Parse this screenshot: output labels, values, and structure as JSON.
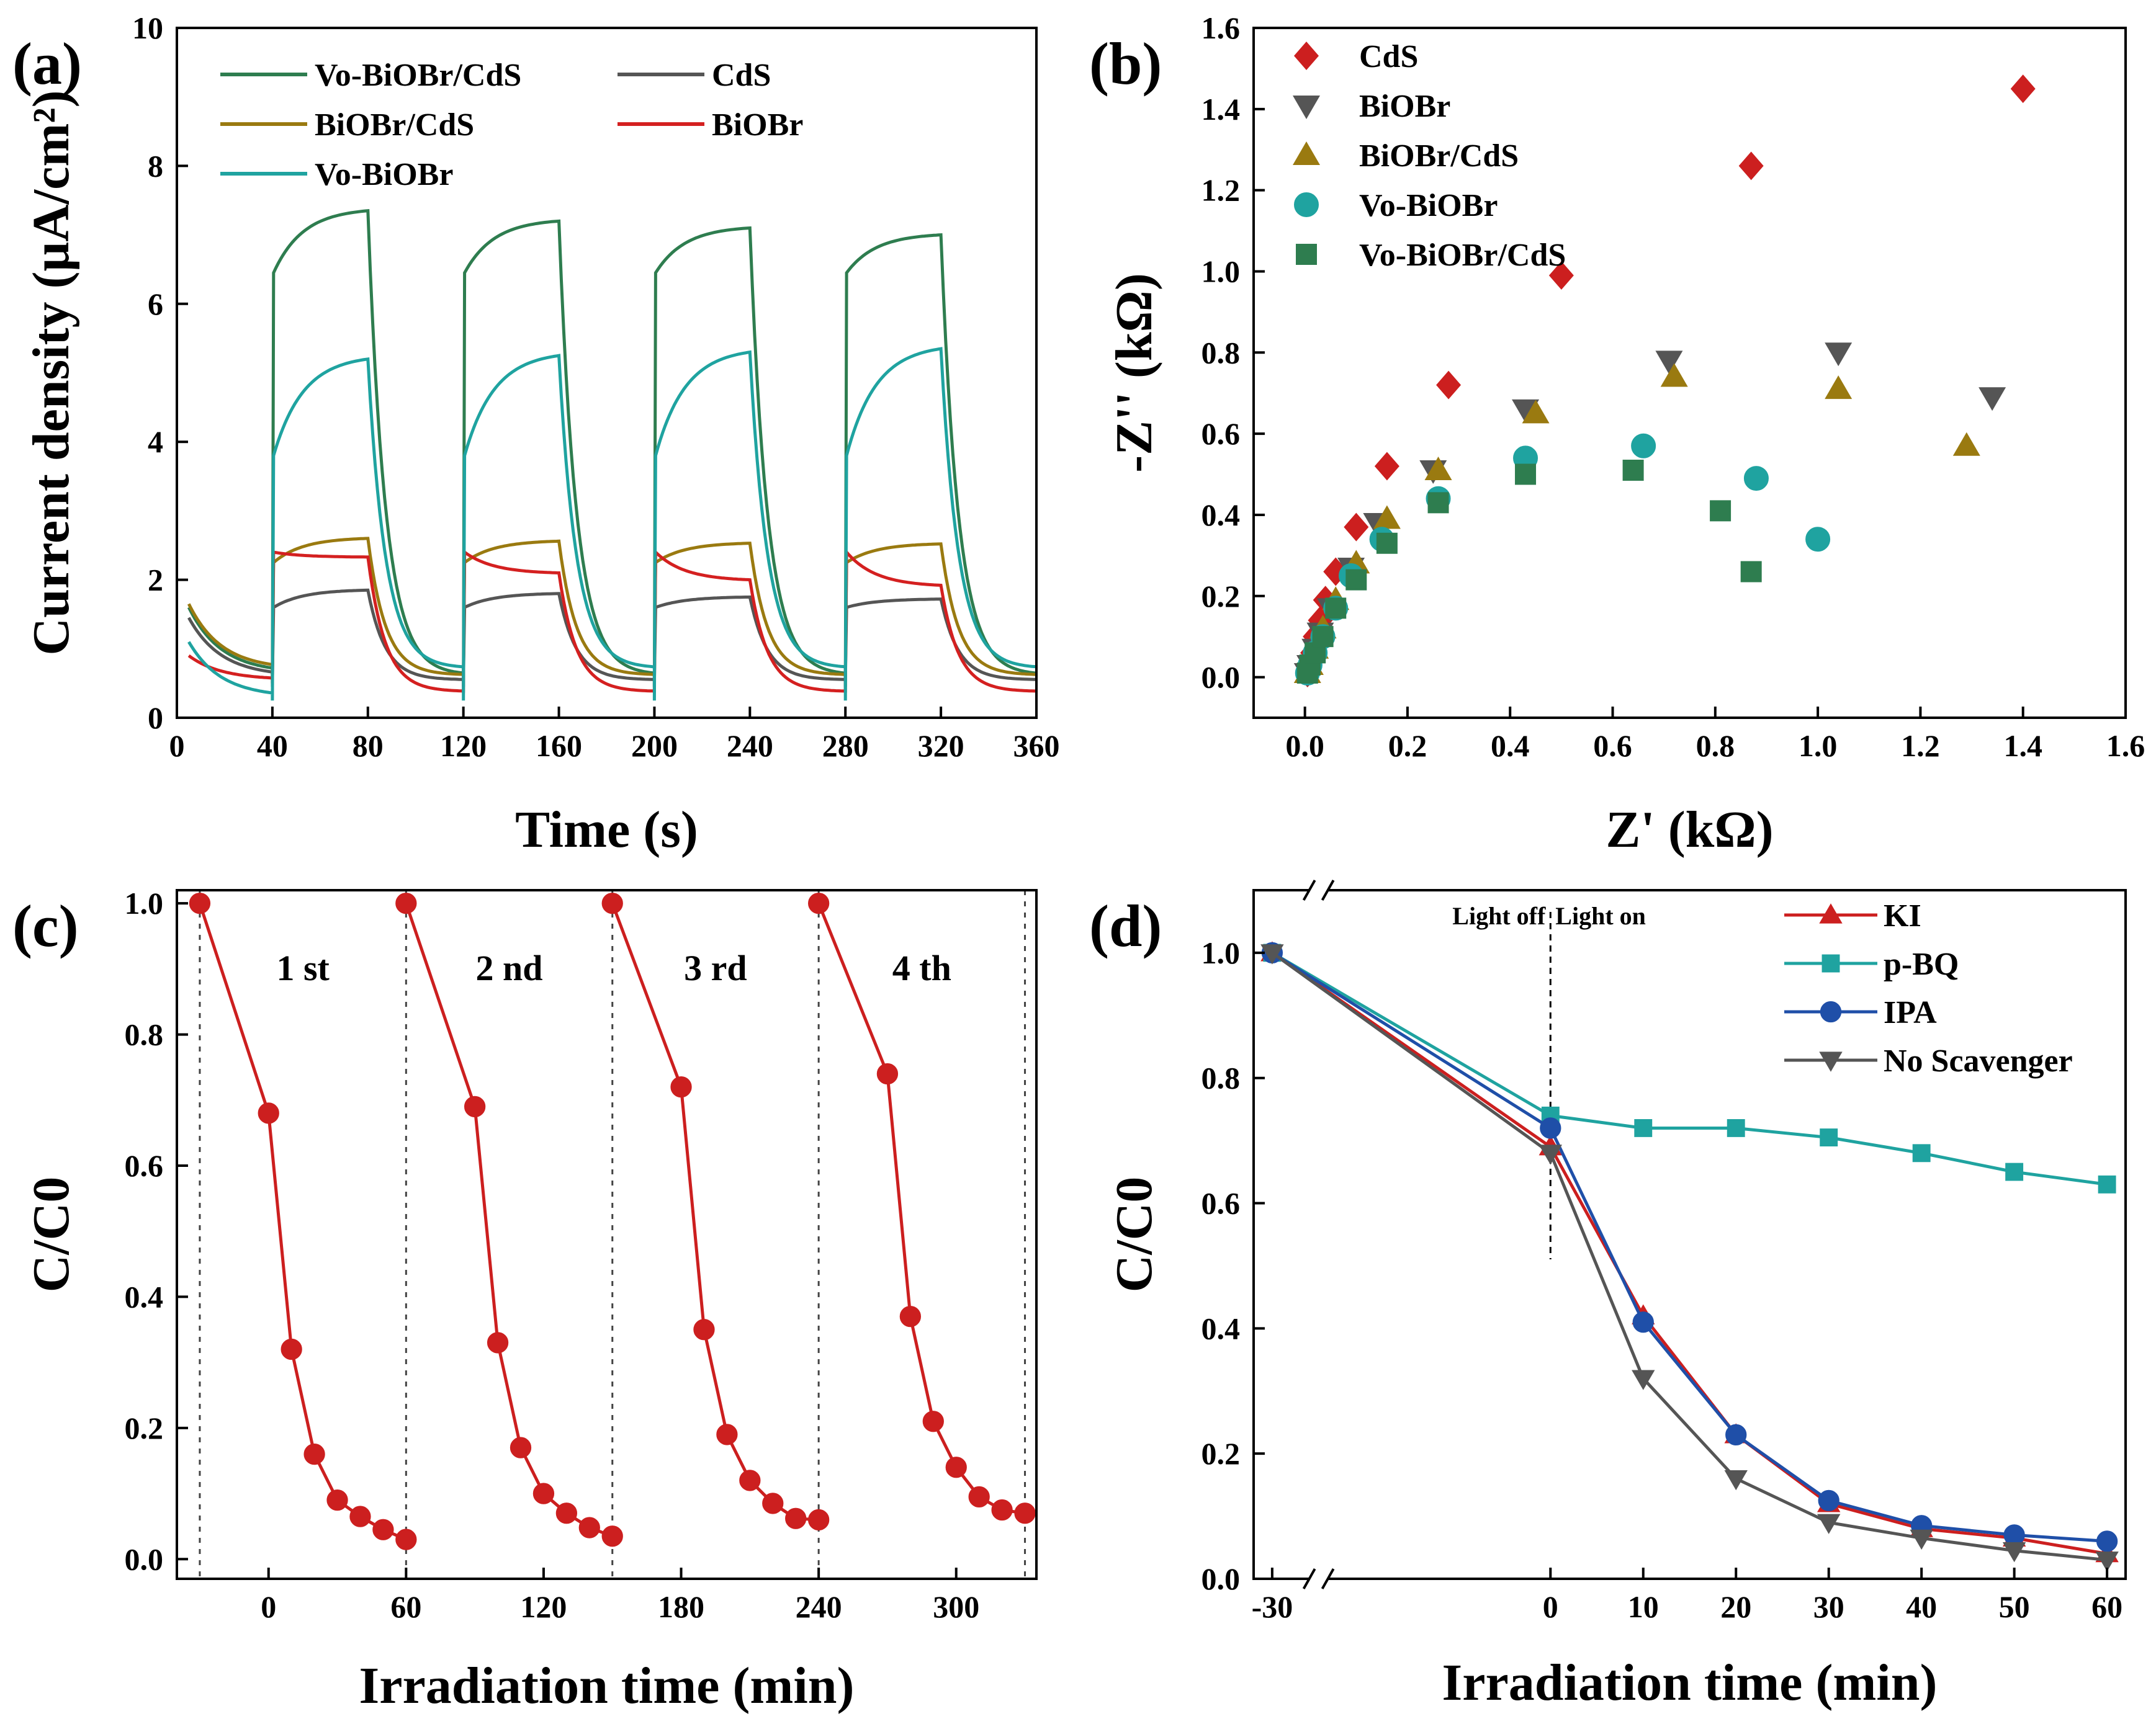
{
  "chart_data": [
    {
      "panel": "(a)",
      "type": "line",
      "title": "",
      "xlabel": "Time (s)",
      "ylabel": "Current density (μA/cm²)",
      "xlim": [
        0,
        360
      ],
      "ylim": [
        0,
        10
      ],
      "xticks": [
        0,
        40,
        80,
        120,
        160,
        200,
        240,
        280,
        320,
        360
      ],
      "yticks": [
        0,
        2,
        4,
        6,
        8,
        10
      ],
      "legend_position": "top-left",
      "light_on_intervals": [
        [
          40,
          80
        ],
        [
          120,
          160
        ],
        [
          200,
          240
        ],
        [
          280,
          320
        ]
      ],
      "series": [
        {
          "name": "Vo-BiOBr/CdS",
          "color": "#2e7d4f",
          "dark_start": 1.6,
          "dark_end": 0.65,
          "on_jump": 6.45,
          "on_end": [
            7.35,
            7.2,
            7.1,
            7.0
          ],
          "on_dip": 0.45,
          "off_floor": 0.62
        },
        {
          "name": "CdS",
          "color": "#555555",
          "dark_start": 1.45,
          "dark_end": 0.6,
          "on_jump": 1.6,
          "on_end": [
            1.85,
            1.8,
            1.75,
            1.72
          ],
          "on_dip": 0.55,
          "off_floor": 0.55
        },
        {
          "name": "BiOBr/CdS",
          "color": "#9a7a10",
          "dark_start": 1.65,
          "dark_end": 0.7,
          "on_jump": 2.25,
          "on_end": [
            2.6,
            2.56,
            2.53,
            2.52
          ],
          "on_dip": 0.6,
          "off_floor": 0.62
        },
        {
          "name": "BiOBr",
          "color": "#d42020",
          "dark_start": 0.9,
          "dark_end": 0.55,
          "on_jump": 2.4,
          "on_end": [
            2.33,
            2.1,
            2.0,
            1.92
          ],
          "on_dip": 0.5,
          "off_floor": 0.38
        },
        {
          "name": "Vo-BiOBr",
          "color": "#1fa3a0",
          "dark_start": 1.1,
          "dark_end": 0.3,
          "on_jump": 3.8,
          "on_end": [
            5.2,
            5.25,
            5.3,
            5.35
          ],
          "on_dip": 0.25,
          "off_floor": 0.72
        }
      ]
    },
    {
      "panel": "(b)",
      "type": "scatter",
      "title": "",
      "xlabel": "Z' (kΩ)",
      "ylabel": "-Z'' (kΩ)",
      "xlim": [
        -0.1,
        1.6
      ],
      "ylim": [
        -0.1,
        1.6
      ],
      "xticks": [
        "0.0",
        "0.2",
        "0.4",
        "0.6",
        "0.8",
        "1.0",
        "1.2",
        "1.4",
        "1.6"
      ],
      "yticks": [
        "0.0",
        "0.2",
        "0.4",
        "0.6",
        "0.8",
        "1.0",
        "1.2",
        "1.4",
        "1.6"
      ],
      "legend_position": "top-left",
      "series": [
        {
          "name": "CdS",
          "marker": "diamond",
          "color": "#cc1f1f",
          "x": [
            0.005,
            0.01,
            0.015,
            0.02,
            0.03,
            0.04,
            0.06,
            0.1,
            0.16,
            0.28,
            0.5,
            0.87,
            1.4
          ],
          "y": [
            0.01,
            0.03,
            0.06,
            0.1,
            0.14,
            0.19,
            0.26,
            0.37,
            0.52,
            0.72,
            0.99,
            1.26,
            1.45
          ]
        },
        {
          "name": "BiOBr",
          "marker": "triangle-down",
          "color": "#555555",
          "x": [
            0.005,
            0.01,
            0.02,
            0.03,
            0.05,
            0.09,
            0.14,
            0.25,
            0.43,
            0.71,
            1.04,
            1.34
          ],
          "y": [
            0.01,
            0.03,
            0.07,
            0.11,
            0.17,
            0.27,
            0.38,
            0.51,
            0.66,
            0.78,
            0.8,
            0.69
          ]
        },
        {
          "name": "BiOBr/CdS",
          "marker": "triangle-up",
          "color": "#9a7a10",
          "x": [
            0.005,
            0.01,
            0.02,
            0.035,
            0.06,
            0.1,
            0.16,
            0.26,
            0.45,
            0.72,
            1.04,
            1.29
          ],
          "y": [
            0.01,
            0.03,
            0.07,
            0.12,
            0.19,
            0.28,
            0.39,
            0.51,
            0.65,
            0.74,
            0.71,
            0.57
          ]
        },
        {
          "name": "Vo-BiOBr",
          "marker": "circle",
          "color": "#1fa3a0",
          "x": [
            0.005,
            0.01,
            0.02,
            0.035,
            0.06,
            0.09,
            0.15,
            0.26,
            0.43,
            0.66,
            0.88,
            1.0
          ],
          "y": [
            0.01,
            0.03,
            0.06,
            0.1,
            0.17,
            0.25,
            0.34,
            0.44,
            0.54,
            0.57,
            0.49,
            0.34
          ]
        },
        {
          "name": "Vo-BiOBr/CdS",
          "marker": "square",
          "color": "#2e7d4f",
          "x": [
            0.005,
            0.01,
            0.02,
            0.035,
            0.06,
            0.1,
            0.16,
            0.26,
            0.43,
            0.64,
            0.81,
            0.87
          ],
          "y": [
            0.01,
            0.03,
            0.06,
            0.1,
            0.17,
            0.24,
            0.33,
            0.43,
            0.5,
            0.51,
            0.41,
            0.26
          ]
        }
      ]
    },
    {
      "panel": "(c)",
      "type": "line",
      "title": "",
      "xlabel": "Irradiation time (min)",
      "ylabel": "C/C0",
      "xlim": [
        -40,
        335
      ],
      "ylim": [
        -0.03,
        1.02
      ],
      "xticks": [
        0,
        60,
        120,
        180,
        240,
        300
      ],
      "yticks": [
        "0.0",
        "0.2",
        "0.4",
        "0.6",
        "0.8",
        "1.0"
      ],
      "cycle_labels": [
        "1 st",
        "2 nd",
        "3 rd",
        "4 th"
      ],
      "dividers": [
        -30,
        60,
        150,
        240,
        330
      ],
      "series": [
        {
          "name": "cycles",
          "color": "#cc1f1f",
          "cycles": [
            {
              "x": [
                -30,
                0,
                10,
                20,
                30,
                40,
                50,
                60
              ],
              "y": [
                1.0,
                0.68,
                0.32,
                0.16,
                0.09,
                0.065,
                0.045,
                0.03
              ]
            },
            {
              "x": [
                60,
                90,
                100,
                110,
                120,
                130,
                140,
                150
              ],
              "y": [
                1.0,
                0.69,
                0.33,
                0.17,
                0.1,
                0.07,
                0.048,
                0.035
              ]
            },
            {
              "x": [
                150,
                180,
                190,
                200,
                210,
                220,
                230,
                240
              ],
              "y": [
                1.0,
                0.72,
                0.35,
                0.19,
                0.12,
                0.085,
                0.062,
                0.06
              ]
            },
            {
              "x": [
                240,
                270,
                280,
                290,
                300,
                310,
                320,
                330
              ],
              "y": [
                1.0,
                0.74,
                0.37,
                0.21,
                0.14,
                0.095,
                0.075,
                0.07
              ]
            }
          ]
        }
      ]
    },
    {
      "panel": "(d)",
      "type": "line",
      "title": "",
      "xlabel": "Irradiation time (min)",
      "ylabel": "C/C0",
      "xlim": [
        -32,
        62
      ],
      "ylim": [
        0,
        1.1
      ],
      "xticks": [
        "-30",
        "0",
        "10",
        "20",
        "30",
        "40",
        "50",
        "60"
      ],
      "yticks": [
        "0.0",
        "0.2",
        "0.4",
        "0.6",
        "0.8",
        "1.0"
      ],
      "annotation_left": "Light off",
      "annotation_right": "Light on",
      "axis_break": true,
      "legend_position": "top-right",
      "series": [
        {
          "name": "KI",
          "marker": "triangle-up",
          "color": "#cc1f1f",
          "x": [
            -30,
            0,
            10,
            20,
            30,
            40,
            50,
            60
          ],
          "y": [
            1.0,
            0.69,
            0.42,
            0.23,
            0.12,
            0.08,
            0.065,
            0.04
          ]
        },
        {
          "name": "p-BQ",
          "marker": "square",
          "color": "#1fa3a0",
          "x": [
            -30,
            0,
            10,
            20,
            30,
            40,
            50,
            60
          ],
          "y": [
            1.0,
            0.74,
            0.72,
            0.72,
            0.705,
            0.68,
            0.65,
            0.63
          ]
        },
        {
          "name": "IPA",
          "marker": "circle",
          "color": "#1f4fa8",
          "x": [
            -30,
            0,
            10,
            20,
            30,
            40,
            50,
            60
          ],
          "y": [
            1.0,
            0.72,
            0.41,
            0.23,
            0.125,
            0.085,
            0.07,
            0.06
          ]
        },
        {
          "name": "No Scavenger",
          "marker": "triangle-down",
          "color": "#555555",
          "x": [
            -30,
            0,
            10,
            20,
            30,
            40,
            50,
            60
          ],
          "y": [
            1.0,
            0.68,
            0.32,
            0.16,
            0.09,
            0.065,
            0.045,
            0.03
          ]
        }
      ]
    }
  ]
}
